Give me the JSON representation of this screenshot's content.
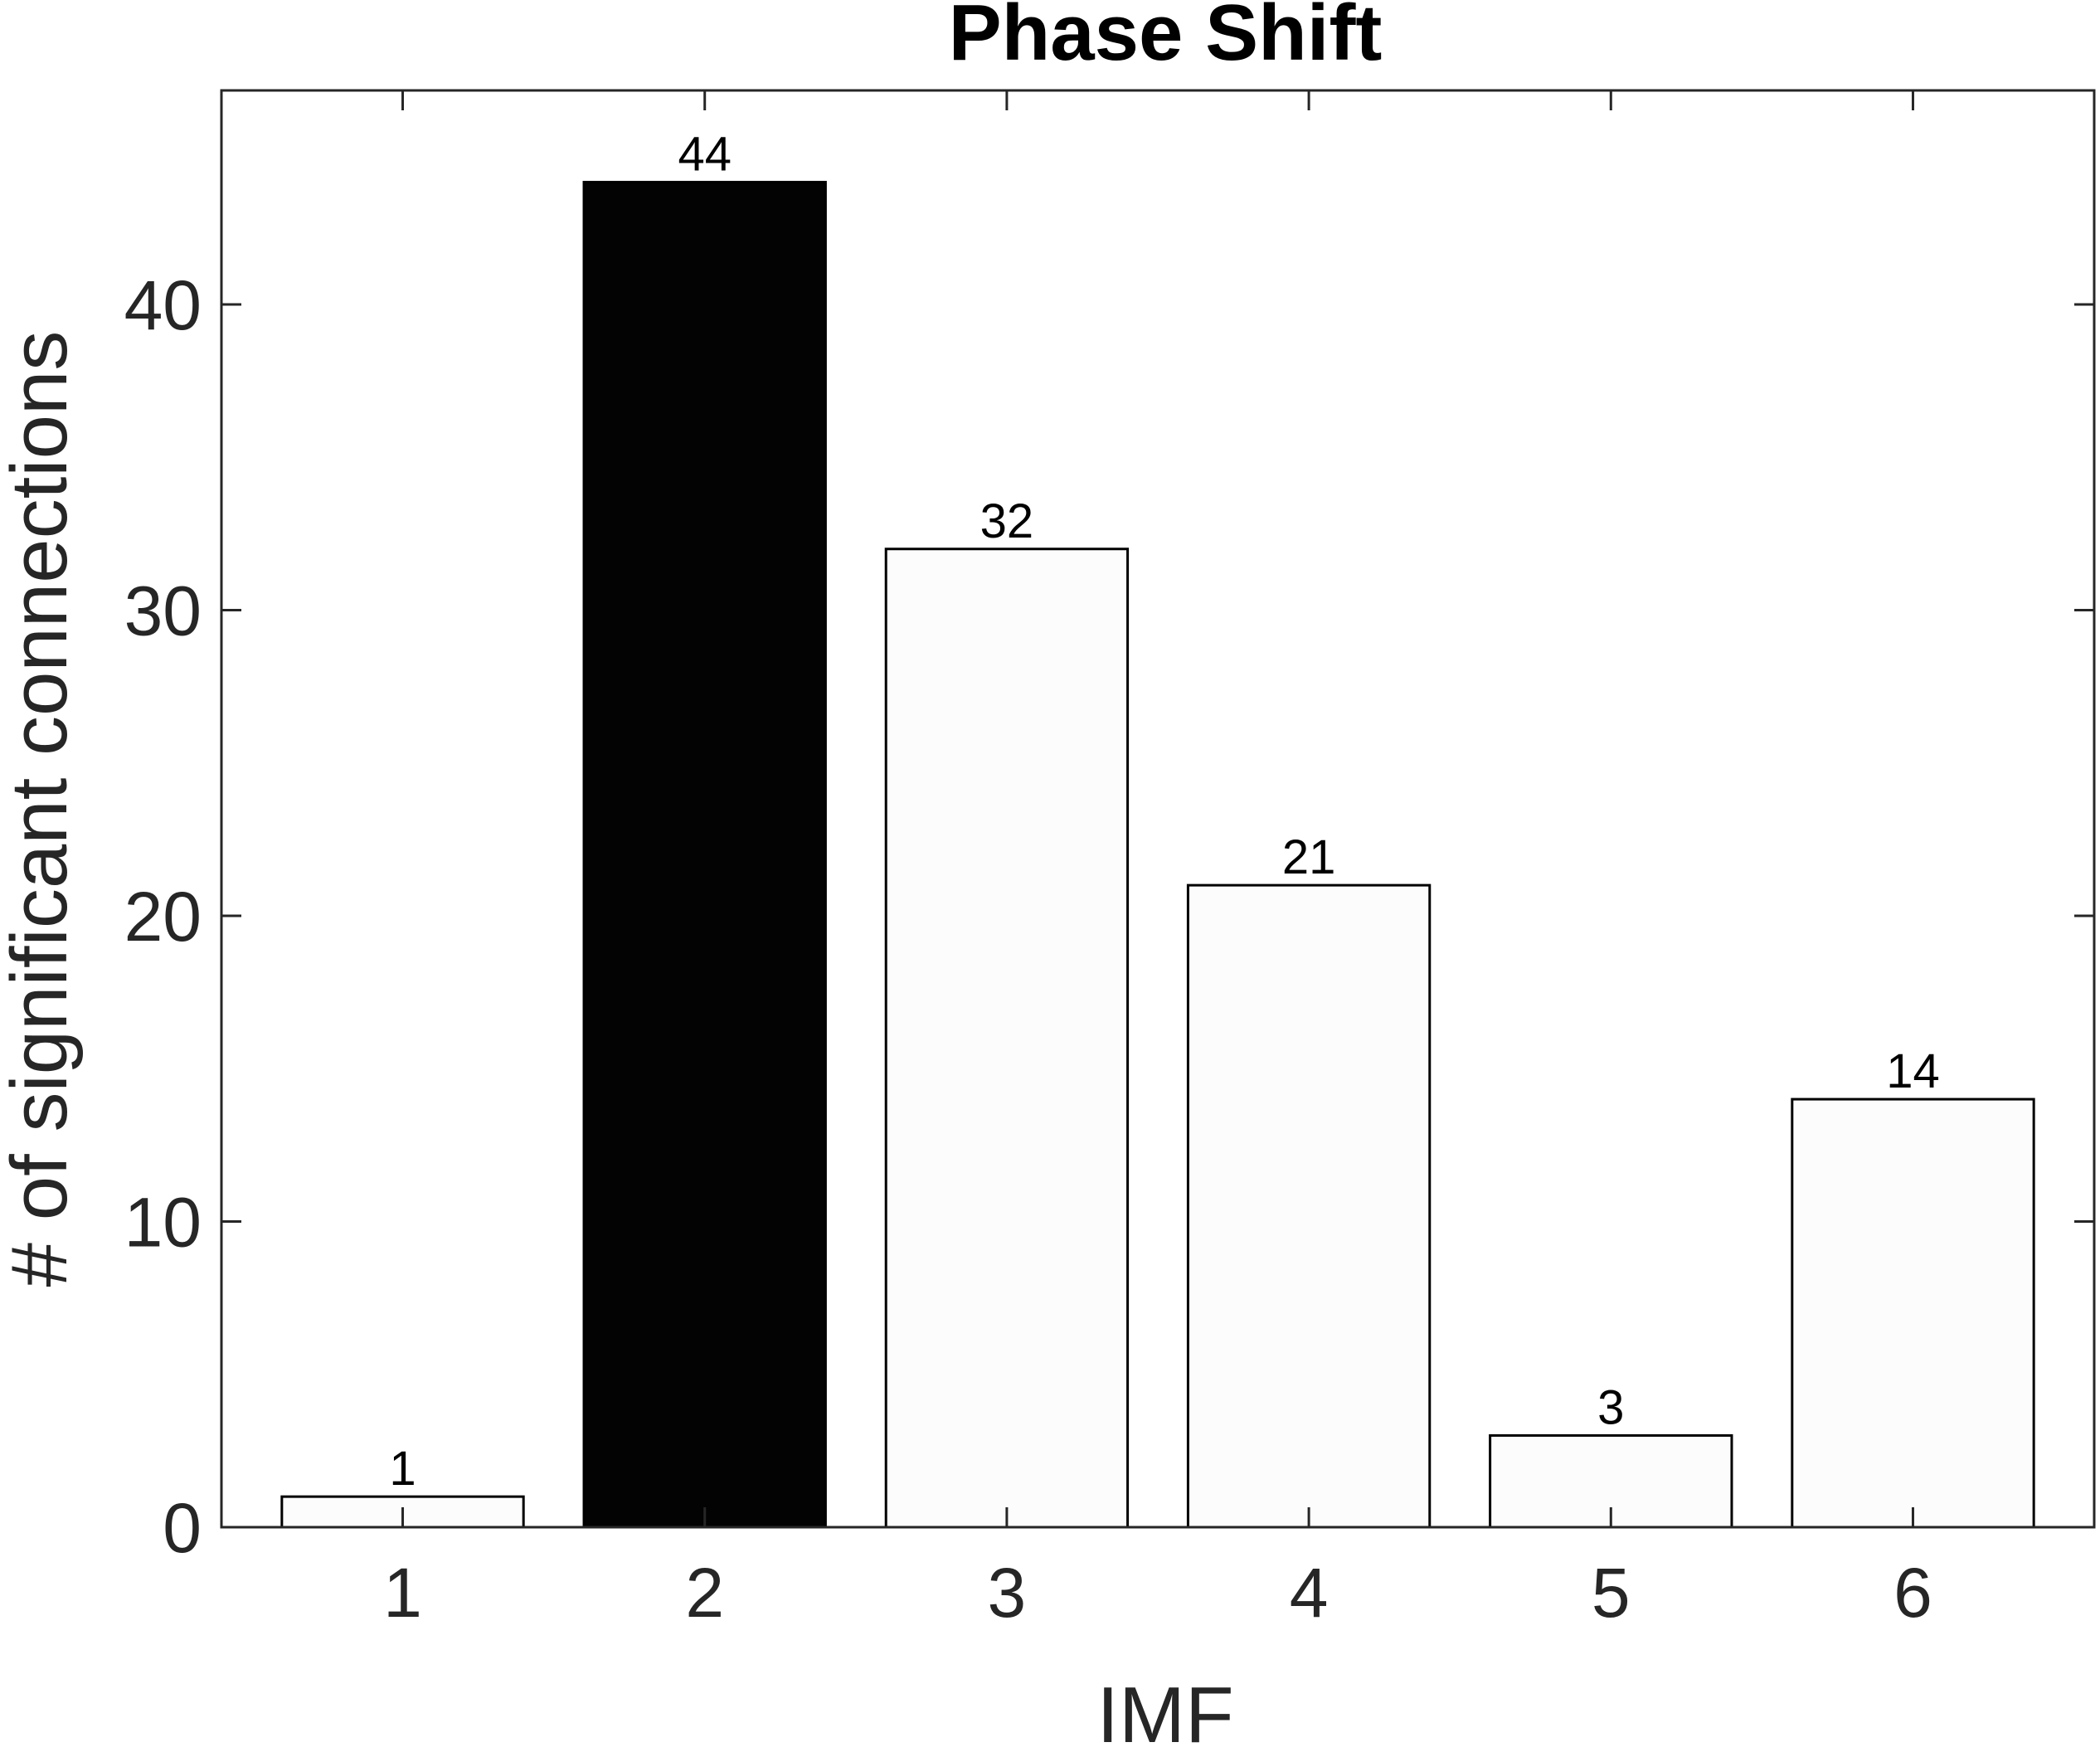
{
  "chart_data": {
    "type": "bar",
    "title": "Phase Shift",
    "xlabel": "IMF",
    "ylabel": "# of significant connections",
    "categories": [
      "1",
      "2",
      "3",
      "4",
      "5",
      "6"
    ],
    "values": [
      1,
      44,
      32,
      21,
      3,
      14
    ],
    "data_labels": [
      "1",
      "44",
      "32",
      "21",
      "3",
      "14"
    ],
    "xlim": [
      0.4,
      6.6
    ],
    "ylim": [
      0,
      47
    ],
    "yticks": [
      0,
      10,
      20,
      30,
      40
    ],
    "ytick_labels": [
      "0",
      "10",
      "20",
      "30",
      "40"
    ],
    "grid": false,
    "legend": "none",
    "colors": {
      "bar_default": "#fcfcfc",
      "bar_highlight": "#030303",
      "edge": "#000000",
      "axis": "#262626"
    },
    "highlight_index": 1
  }
}
